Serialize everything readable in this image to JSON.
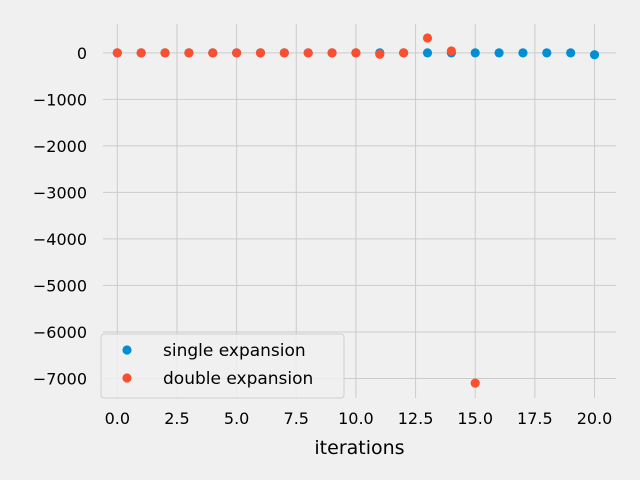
{
  "chart_data": {
    "type": "scatter",
    "title": "",
    "xlabel": "iterations",
    "ylabel": "",
    "xlim": [
      -0.6,
      20.9
    ],
    "ylim": [
      -7420,
      620
    ],
    "xticks": [
      0.0,
      2.5,
      5.0,
      7.5,
      10.0,
      12.5,
      15.0,
      17.5,
      20.0
    ],
    "xtick_labels": [
      "0.0",
      "2.5",
      "5.0",
      "7.5",
      "10.0",
      "12.5",
      "15.0",
      "17.5",
      "20.0"
    ],
    "yticks": [
      0,
      -1000,
      -2000,
      -3000,
      -4000,
      -5000,
      -6000,
      -7000
    ],
    "ytick_labels": [
      "0",
      "−1000",
      "−2000",
      "−3000",
      "−4000",
      "−5000",
      "−6000",
      "−7000"
    ],
    "grid": true,
    "legend_position": "lower-left",
    "series": [
      {
        "name": "single expansion",
        "color": "#008fd5",
        "points": [
          [
            0,
            0
          ],
          [
            1,
            0
          ],
          [
            2,
            0
          ],
          [
            3,
            0
          ],
          [
            4,
            0
          ],
          [
            5,
            0
          ],
          [
            6,
            0
          ],
          [
            7,
            0
          ],
          [
            8,
            0
          ],
          [
            9,
            0
          ],
          [
            10,
            0
          ],
          [
            11,
            0
          ],
          [
            12,
            0
          ],
          [
            13,
            0
          ],
          [
            14,
            0
          ],
          [
            15,
            0
          ],
          [
            16,
            0
          ],
          [
            17,
            0
          ],
          [
            18,
            0
          ],
          [
            19,
            0
          ],
          [
            20,
            -40
          ]
        ]
      },
      {
        "name": "double expansion",
        "color": "#fc4f30",
        "points": [
          [
            0,
            0
          ],
          [
            1,
            0
          ],
          [
            2,
            0
          ],
          [
            3,
            0
          ],
          [
            4,
            0
          ],
          [
            5,
            0
          ],
          [
            6,
            0
          ],
          [
            7,
            0
          ],
          [
            8,
            0
          ],
          [
            9,
            0
          ],
          [
            10,
            0
          ],
          [
            11,
            -30
          ],
          [
            12,
            0
          ],
          [
            13,
            320
          ],
          [
            14,
            40
          ],
          [
            15,
            -7100
          ]
        ]
      }
    ]
  }
}
